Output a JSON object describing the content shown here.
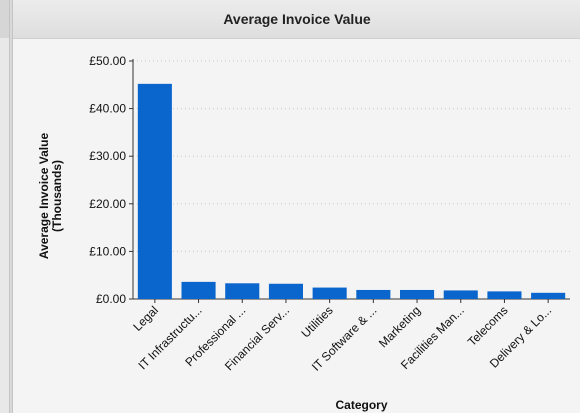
{
  "panel": {
    "title": "Average Invoice Value"
  },
  "chart_data": {
    "type": "bar",
    "title": "Average Invoice Value",
    "xlabel": "Category",
    "ylabel_lines": [
      "Average Invoice Value",
      "(Thousands)"
    ],
    "categories": [
      "Legal",
      "IT Infrastructu...",
      "Professional ...",
      "Financial Serv...",
      "Utilities",
      "IT Software & ...",
      "Marketing",
      "Facilities Man...",
      "Telecoms",
      "Delivery & Lo..."
    ],
    "values": [
      45.2,
      3.6,
      3.3,
      3.2,
      2.4,
      1.9,
      1.9,
      1.8,
      1.6,
      1.3
    ],
    "ylim": [
      0,
      50
    ],
    "yticks": [
      0,
      10,
      20,
      30,
      40,
      50
    ],
    "ytick_labels": [
      "£0.00",
      "£10.00",
      "£20.00",
      "£30.00",
      "£40.00",
      "£50.00"
    ],
    "grid": true,
    "colors": {
      "bar": "#0a66cc",
      "grid": "#c8c8c8",
      "axis": "#333333"
    }
  }
}
